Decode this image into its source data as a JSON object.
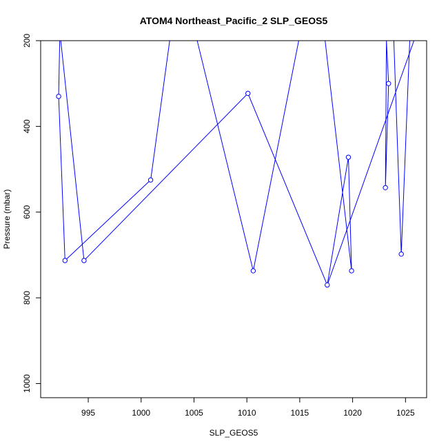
{
  "chart_data": {
    "type": "line",
    "title": "ATOM4 Northeast_Pacific_2 SLP_GEOS5",
    "xlabel": "SLP_GEOS5",
    "ylabel": "Pressure (mbar)",
    "xlim": [
      990.5,
      1027
    ],
    "ylim": [
      1033,
      200
    ],
    "y_reversed": true,
    "x_ticks": [
      995,
      1000,
      1005,
      1010,
      1015,
      1020,
      1025
    ],
    "y_ticks": [
      200,
      400,
      600,
      800,
      1000
    ],
    "series": [
      {
        "color": "#0000ff",
        "points": [
          {
            "x": 992.3,
            "y": 200,
            "marker": false
          },
          {
            "x": 992.2,
            "y": 330,
            "marker": true
          },
          {
            "x": 992.8,
            "y": 713,
            "marker": true
          },
          {
            "x": 1000.9,
            "y": 525,
            "marker": true
          },
          {
            "x": 1002.7,
            "y": 200,
            "marker": false
          },
          {
            "x": 1005.3,
            "y": 200,
            "marker": false
          },
          {
            "x": 1010.6,
            "y": 737,
            "marker": true
          },
          {
            "x": 1014.9,
            "y": 200,
            "marker": false
          },
          {
            "x": 1017.4,
            "y": 200,
            "marker": false
          },
          {
            "x": 1019.9,
            "y": 737,
            "marker": true
          },
          {
            "x": 1019.6,
            "y": 472,
            "marker": true
          },
          {
            "x": 1017.6,
            "y": 770,
            "marker": true
          },
          {
            "x": 1010.1,
            "y": 323,
            "marker": true
          },
          {
            "x": 994.6,
            "y": 713,
            "marker": true
          },
          {
            "x": 992.4,
            "y": 200,
            "marker": false
          }
        ]
      },
      {
        "color": "#0000ff",
        "points": [
          {
            "x": 1023.2,
            "y": 200,
            "marker": false
          },
          {
            "x": 1023.4,
            "y": 300,
            "marker": true
          },
          {
            "x": 1023.1,
            "y": 543,
            "marker": true
          },
          {
            "x": 1023.2,
            "y": 200,
            "marker": false
          }
        ]
      },
      {
        "color": "#0000ff",
        "points": [
          {
            "x": 1023.9,
            "y": 200,
            "marker": false
          },
          {
            "x": 1024.6,
            "y": 698,
            "marker": true
          },
          {
            "x": 1025.4,
            "y": 200,
            "marker": false
          }
        ]
      },
      {
        "color": "#0000ff",
        "points": [
          {
            "x": 1017.6,
            "y": 770,
            "marker": false
          },
          {
            "x": 1025.8,
            "y": 200,
            "marker": false
          }
        ]
      }
    ]
  }
}
